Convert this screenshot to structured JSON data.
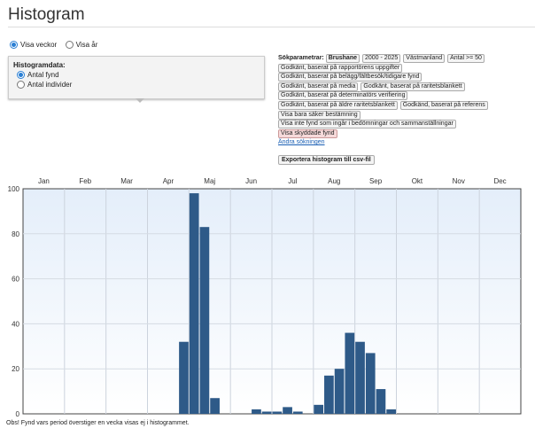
{
  "title": "Histogram",
  "view_mode": {
    "options": [
      "Visa veckor",
      "Visa år"
    ],
    "selected": 0
  },
  "histogram_data": {
    "label": "Histogramdata:",
    "options": [
      "Antal fynd",
      "Antal individer"
    ],
    "selected": 0
  },
  "params": {
    "label": "Sökparametrar:",
    "rows": [
      [
        "Brushane",
        "2000 - 2025",
        "Västmanland",
        "Antal >= 50"
      ],
      [
        "Godkänt, baserat på rapportörens uppgifter"
      ],
      [
        "Godkänt, baserat på belägg/fältbesök/tidigare fynd"
      ],
      [
        "Godkänt, baserat på media",
        "Godkänt, baserat på raritetsblankett"
      ],
      [
        "Godkänt, baserat på determinatörs verifiering"
      ],
      [
        "Godkänt, baserat på äldre raritetsblankett",
        "Godkänd, baserat på referens"
      ],
      [
        "Visa bara säker bestämning"
      ],
      [
        "Visa inte fynd som ingår i bedömningar och sammanställningar"
      ],
      [
        "Visa skyddade fynd"
      ]
    ],
    "change_link": "Ändra sökningen"
  },
  "export_label": "Exportera histogram till csv-fil",
  "note": "Obs! Fynd vars period överstiger en vecka visas ej i histogrammet.",
  "colors": {
    "bar": "#2e5a88"
  },
  "chart_data": {
    "type": "bar",
    "title": "",
    "xlabel": "",
    "ylabel": "",
    "ylim": [
      0,
      100
    ],
    "months": [
      "Jan",
      "Feb",
      "Mar",
      "Apr",
      "Maj",
      "Jun",
      "Jul",
      "Aug",
      "Sep",
      "Okt",
      "Nov",
      "Dec"
    ],
    "yticks": [
      0,
      20,
      40,
      60,
      80,
      100
    ],
    "bins": 48,
    "values": [
      0,
      0,
      0,
      0,
      0,
      0,
      0,
      0,
      0,
      0,
      0,
      0,
      0,
      0,
      0,
      32,
      98,
      83,
      7,
      0,
      0,
      0,
      2,
      1,
      1,
      3,
      1,
      0,
      4,
      17,
      20,
      36,
      32,
      27,
      11,
      2,
      0,
      0,
      0,
      0,
      0,
      0,
      0,
      0,
      0,
      0,
      0,
      0
    ]
  }
}
